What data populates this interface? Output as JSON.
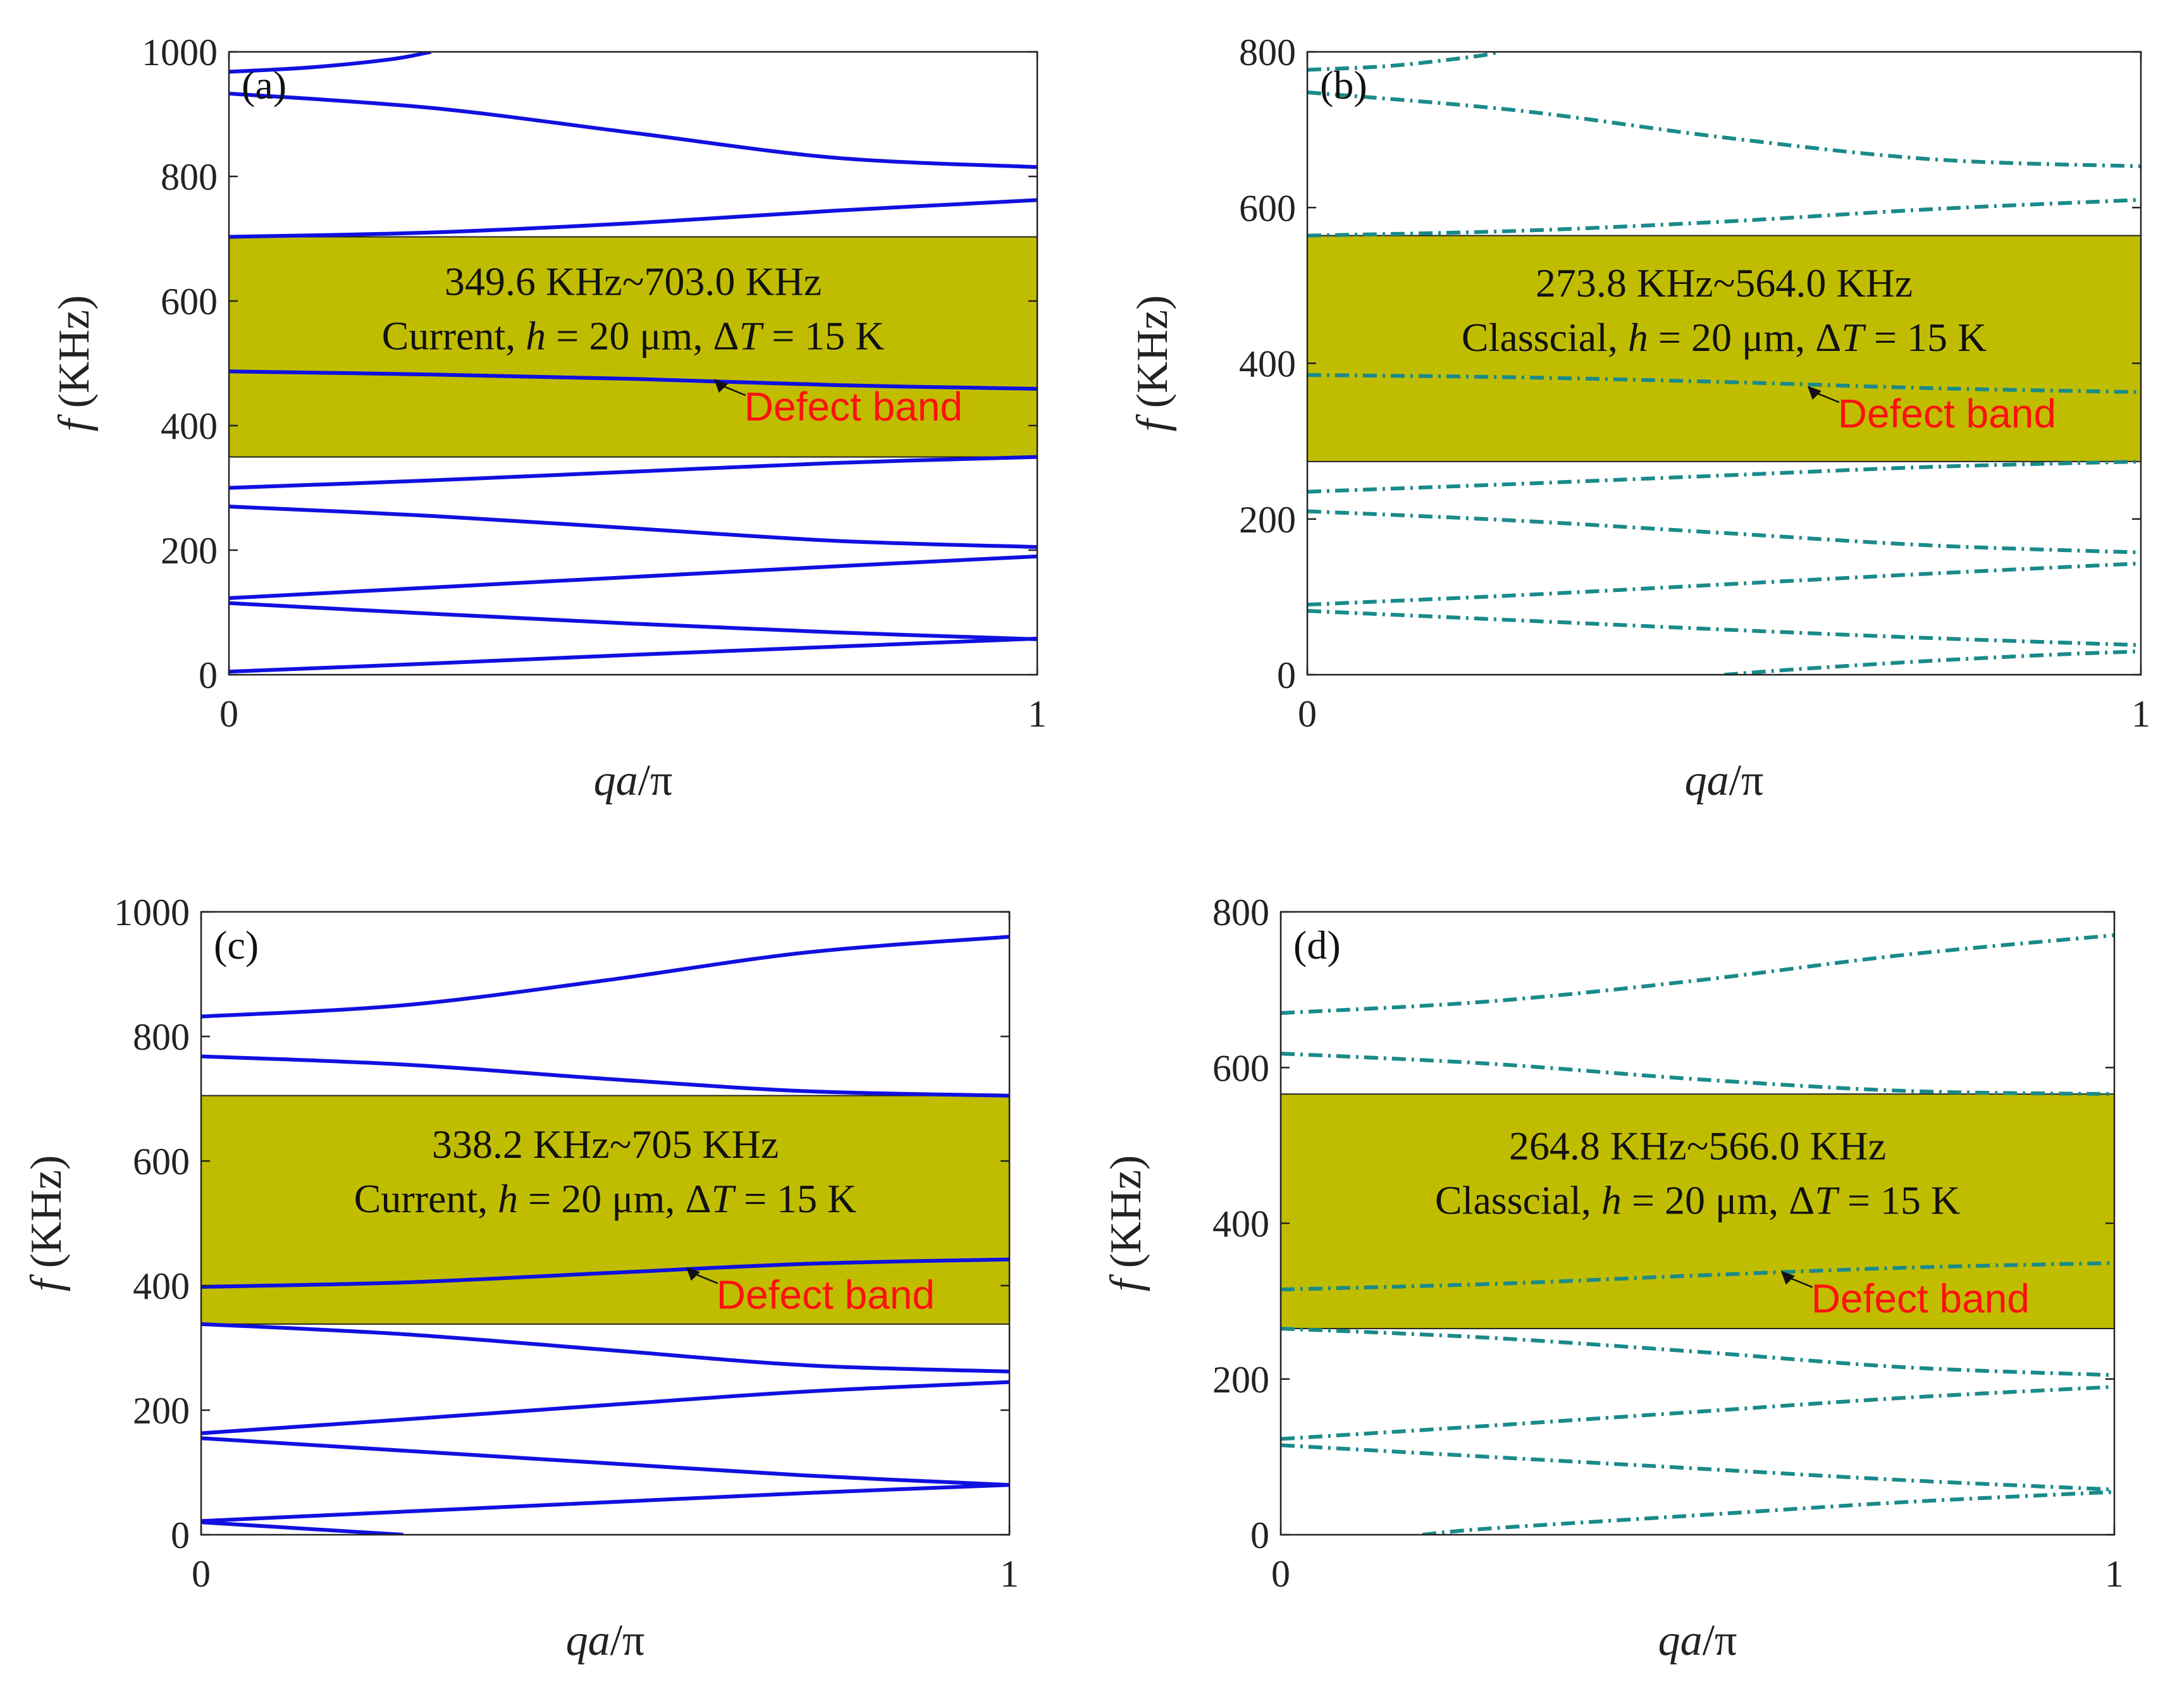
{
  "chart_data": [
    {
      "type": "line",
      "panel_label": "(a)",
      "xlabel": "qa/π",
      "ylabel": "f (KHz)",
      "xlim": [
        0,
        1
      ],
      "ylim": [
        0,
        1000
      ],
      "xticks": [
        0,
        1
      ],
      "yticks": [
        0,
        200,
        400,
        600,
        800,
        1000
      ],
      "line_style": "solid",
      "line_color": "#1010e0",
      "band_gap": {
        "low": 349.6,
        "high": 703.0,
        "color": "#c0bd00"
      },
      "gap_text": "349.6 KHz~703.0 KHz",
      "condition_prefix": "Current, ",
      "condition_h": "h",
      "condition_mid": " = 20 μm, Δ",
      "condition_T": "T",
      "condition_suffix": " = 15 K",
      "annotation": {
        "text": "Defect band",
        "x": 0.6,
        "y": 475
      },
      "series": [
        {
          "name": "band-1",
          "x": [
            0,
            0.25,
            0.5,
            0.75,
            1.0
          ],
          "y": [
            5,
            18,
            32,
            45,
            58
          ]
        },
        {
          "name": "band-2",
          "x": [
            0,
            0.25,
            0.5,
            0.75,
            1.0
          ],
          "y": [
            115,
            98,
            82,
            68,
            57
          ]
        },
        {
          "name": "band-3",
          "x": [
            0,
            0.25,
            0.5,
            0.75,
            1.0
          ],
          "y": [
            123,
            140,
            157,
            174,
            190
          ]
        },
        {
          "name": "band-4",
          "x": [
            0,
            0.25,
            0.5,
            0.75,
            1.0
          ],
          "y": [
            270,
            255,
            235,
            215,
            205
          ]
        },
        {
          "name": "band-5",
          "x": [
            0,
            0.25,
            0.5,
            0.75,
            1.0
          ],
          "y": [
            300,
            312,
            326,
            340,
            349.6
          ]
        },
        {
          "name": "defect-band",
          "x": [
            0,
            0.25,
            0.5,
            0.75,
            1.0
          ],
          "y": [
            487,
            482,
            475,
            465,
            459
          ]
        },
        {
          "name": "band-7",
          "x": [
            0,
            0.25,
            0.5,
            0.75,
            1.0
          ],
          "y": [
            703,
            710,
            725,
            745,
            762
          ]
        },
        {
          "name": "band-8",
          "x": [
            0,
            0.25,
            0.5,
            0.75,
            1.0
          ],
          "y": [
            933,
            910,
            870,
            830,
            815
          ]
        },
        {
          "name": "band-9",
          "x": [
            0,
            0.1,
            0.2,
            0.25
          ],
          "y": [
            968,
            975,
            988,
            1000
          ]
        }
      ]
    },
    {
      "type": "line",
      "panel_label": "(b)",
      "xlabel": "qa/π",
      "ylabel": "f (KHz)",
      "xlim": [
        0,
        1
      ],
      "ylim": [
        0,
        800
      ],
      "xticks": [
        0,
        1
      ],
      "yticks": [
        0,
        200,
        400,
        600,
        800
      ],
      "line_style": "dashdot",
      "line_color": "#1a8a8a",
      "band_gap": {
        "low": 273.8,
        "high": 564.0,
        "color": "#c0bd00"
      },
      "gap_text": "273.8 KHz~564.0 KHz",
      "condition_prefix": "Classcial, ",
      "condition_h": "h",
      "condition_mid": " = 20 μm, Δ",
      "condition_T": "T",
      "condition_suffix": " = 15 K",
      "annotation": {
        "text": "Defect band",
        "x": 0.6,
        "y": 371
      },
      "series": [
        {
          "name": "band-1",
          "x": [
            0.5,
            0.6,
            0.75,
            0.9,
            1.0
          ],
          "y": [
            0,
            8,
            18,
            26,
            30
          ]
        },
        {
          "name": "band-2",
          "x": [
            0,
            0.25,
            0.5,
            0.75,
            1.0
          ],
          "y": [
            82,
            70,
            58,
            47,
            38
          ]
        },
        {
          "name": "band-3",
          "x": [
            0,
            0.25,
            0.5,
            0.75,
            1.0
          ],
          "y": [
            90,
            102,
            116,
            130,
            143
          ]
        },
        {
          "name": "band-4",
          "x": [
            0,
            0.25,
            0.5,
            0.75,
            1.0
          ],
          "y": [
            210,
            198,
            182,
            166,
            157
          ]
        },
        {
          "name": "band-5",
          "x": [
            0,
            0.25,
            0.5,
            0.75,
            1.0
          ],
          "y": [
            235,
            245,
            256,
            267,
            273.8
          ]
        },
        {
          "name": "defect-band",
          "x": [
            0,
            0.25,
            0.5,
            0.75,
            1.0
          ],
          "y": [
            385,
            382,
            376,
            368,
            363
          ]
        },
        {
          "name": "band-7",
          "x": [
            0,
            0.25,
            0.5,
            0.75,
            1.0
          ],
          "y": [
            564,
            570,
            582,
            598,
            610
          ]
        },
        {
          "name": "band-8",
          "x": [
            0,
            0.25,
            0.5,
            0.75,
            1.0
          ],
          "y": [
            748,
            725,
            690,
            662,
            653
          ]
        },
        {
          "name": "band-9",
          "x": [
            0,
            0.1,
            0.2,
            0.23
          ],
          "y": [
            777,
            782,
            794,
            800
          ]
        }
      ]
    },
    {
      "type": "line",
      "panel_label": "(c)",
      "xlabel": "qa/π",
      "ylabel": "f (KHz)",
      "xlim": [
        0,
        1
      ],
      "ylim": [
        0,
        1000
      ],
      "xticks": [
        0,
        1
      ],
      "yticks": [
        0,
        200,
        400,
        600,
        800,
        1000
      ],
      "line_style": "solid",
      "line_color": "#1010e0",
      "band_gap": {
        "low": 338.2,
        "high": 705,
        "color": "#c0bd00"
      },
      "gap_text": "338.2 KHz~705 KHz",
      "condition_prefix": "Current, ",
      "condition_h": "h",
      "condition_mid": " = 20 μm, Δ",
      "condition_T": "T",
      "condition_suffix": " = 15 K",
      "annotation": {
        "text": "Defect band",
        "x": 0.6,
        "y": 430
      },
      "series": [
        {
          "name": "band-1",
          "x": [
            0,
            0.1,
            0.2,
            0.25
          ],
          "y": [
            20,
            12,
            4,
            0
          ]
        },
        {
          "name": "band-2",
          "x": [
            0,
            0.25,
            0.5,
            0.75,
            1.0
          ],
          "y": [
            22,
            37,
            52,
            67,
            80
          ]
        },
        {
          "name": "band-3",
          "x": [
            0,
            0.25,
            0.5,
            0.75,
            1.0
          ],
          "y": [
            155,
            135,
            115,
            95,
            80
          ]
        },
        {
          "name": "band-4",
          "x": [
            0,
            0.25,
            0.5,
            0.75,
            1.0
          ],
          "y": [
            163,
            185,
            208,
            230,
            245
          ]
        },
        {
          "name": "band-5",
          "x": [
            0,
            0.25,
            0.5,
            0.75,
            1.0
          ],
          "y": [
            338.2,
            322,
            297,
            272,
            262
          ]
        },
        {
          "name": "defect-band",
          "x": [
            0,
            0.25,
            0.5,
            0.75,
            1.0
          ],
          "y": [
            398,
            405,
            420,
            435,
            442
          ]
        },
        {
          "name": "band-7",
          "x": [
            0,
            0.25,
            0.5,
            0.75,
            1.0
          ],
          "y": [
            768,
            755,
            732,
            712,
            705
          ]
        },
        {
          "name": "band-8",
          "x": [
            0,
            0.25,
            0.5,
            0.75,
            1.0
          ],
          "y": [
            832,
            850,
            890,
            935,
            960
          ]
        }
      ]
    },
    {
      "type": "line",
      "panel_label": "(d)",
      "xlabel": "qa/π",
      "ylabel": "f (KHz)",
      "xlim": [
        0,
        1
      ],
      "ylim": [
        0,
        800
      ],
      "xticks": [
        0,
        1
      ],
      "yticks": [
        0,
        200,
        400,
        600,
        800
      ],
      "line_style": "dashdot",
      "line_color": "#1a8a8a",
      "band_gap": {
        "low": 264.8,
        "high": 566.0,
        "color": "#c0bd00"
      },
      "gap_text": "264.8 KHz~566.0 KHz",
      "condition_prefix": "Classcial, ",
      "condition_h": "h",
      "condition_mid": " = 20 μm, Δ",
      "condition_T": "T",
      "condition_suffix": " = 15 K",
      "annotation": {
        "text": "Defect band",
        "x": 0.6,
        "y": 339
      },
      "series": [
        {
          "name": "band-1",
          "x": [
            0.17,
            0.25,
            0.5,
            0.75,
            1.0
          ],
          "y": [
            0,
            8,
            25,
            42,
            55
          ]
        },
        {
          "name": "band-2",
          "x": [
            0,
            0.25,
            0.5,
            0.75,
            1.0
          ],
          "y": [
            115,
            100,
            85,
            70,
            58
          ]
        },
        {
          "name": "band-3",
          "x": [
            0,
            0.25,
            0.5,
            0.75,
            1.0
          ],
          "y": [
            123,
            140,
            158,
            176,
            190
          ]
        },
        {
          "name": "band-4",
          "x": [
            0,
            0.25,
            0.5,
            0.75,
            1.0
          ],
          "y": [
            264.8,
            253,
            235,
            215,
            205
          ]
        },
        {
          "name": "defect-band",
          "x": [
            0,
            0.25,
            0.5,
            0.75,
            1.0
          ],
          "y": [
            315,
            322,
            333,
            343,
            349
          ]
        },
        {
          "name": "band-6",
          "x": [
            0,
            0.25,
            0.5,
            0.75,
            1.0
          ],
          "y": [
            618,
            605,
            585,
            570,
            566
          ]
        },
        {
          "name": "band-7",
          "x": [
            0,
            0.25,
            0.5,
            0.75,
            1.0
          ],
          "y": [
            670,
            685,
            712,
            745,
            770
          ]
        }
      ]
    }
  ]
}
